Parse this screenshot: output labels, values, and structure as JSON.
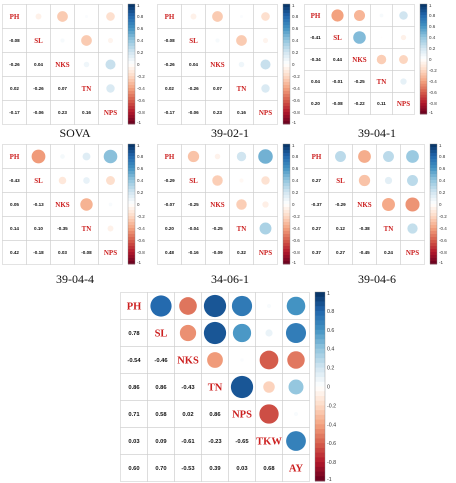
{
  "colors": {
    "neg": "#67001F",
    "mid": "#FFFFFF",
    "pos": "#053061",
    "grid": "#d0d0d0",
    "label": "#cc1f1f"
  },
  "chart_data": [
    {
      "type": "heatmap",
      "title": "SOVA",
      "variables": [
        "PH",
        "SL",
        "NKS",
        "TN",
        "NPS"
      ],
      "values": [
        [
          1,
          -0.08,
          -0.26,
          0.02,
          -0.17
        ],
        [
          -0.08,
          1,
          0.04,
          -0.26,
          -0.06
        ],
        [
          -0.26,
          0.04,
          1,
          0.07,
          0.23
        ],
        [
          0.02,
          -0.26,
          0.07,
          1,
          0.16
        ],
        [
          -0.17,
          -0.06,
          0.23,
          0.16,
          1
        ]
      ],
      "colorbar_ticks": [
        "1",
        "0.8",
        "0.6",
        "0.4",
        "0.2",
        "0",
        "-0.2",
        "-0.4",
        "-0.6",
        "-0.8",
        "-1"
      ],
      "clim": [
        -1,
        1
      ]
    },
    {
      "type": "heatmap",
      "title": "39-02-1",
      "variables": [
        "PH",
        "SL",
        "NKS",
        "TN",
        "NPS"
      ],
      "values": [
        [
          1,
          -0.08,
          -0.26,
          0.02,
          -0.17
        ],
        [
          -0.08,
          1,
          0.04,
          -0.26,
          -0.06
        ],
        [
          -0.26,
          0.04,
          1,
          0.07,
          0.23
        ],
        [
          0.02,
          -0.26,
          0.07,
          1,
          0.16
        ],
        [
          -0.17,
          -0.06,
          0.23,
          0.16,
          1
        ]
      ],
      "colorbar_ticks": [
        "1",
        "0.8",
        "0.6",
        "0.4",
        "0.2",
        "0",
        "-0.2",
        "-0.4",
        "-0.6",
        "-0.8",
        "-1"
      ],
      "clim": [
        -1,
        1
      ]
    },
    {
      "type": "heatmap",
      "title": "39-04-1",
      "variables": [
        "PH",
        "SL",
        "NKS",
        "TN",
        "NPS"
      ],
      "values": [
        [
          1,
          -0.41,
          -0.34,
          0.04,
          0.2
        ],
        [
          -0.41,
          1,
          0.44,
          -0.01,
          -0.08
        ],
        [
          -0.34,
          0.44,
          1,
          -0.25,
          -0.22
        ],
        [
          0.04,
          -0.01,
          -0.25,
          1,
          0.11
        ],
        [
          0.2,
          -0.08,
          -0.22,
          0.11,
          1
        ]
      ],
      "colorbar_ticks": [
        "1",
        "0.8",
        "0.6",
        "0.4",
        "0.2",
        "0",
        "-0.2",
        "-0.4",
        "-0.6",
        "-0.8",
        "-1"
      ],
      "clim": [
        -1,
        1
      ]
    },
    {
      "type": "heatmap",
      "title": "39-04-4",
      "variables": [
        "PH",
        "SL",
        "NKS",
        "TN",
        "NPS"
      ],
      "values": [
        [
          1,
          -0.43,
          0.05,
          0.14,
          0.42
        ],
        [
          -0.43,
          1,
          -0.13,
          0.1,
          -0.18
        ],
        [
          0.05,
          -0.13,
          1,
          -0.35,
          0.03
        ],
        [
          0.14,
          0.1,
          -0.35,
          1,
          -0.08
        ],
        [
          0.42,
          -0.18,
          0.03,
          -0.08,
          1
        ]
      ],
      "colorbar_ticks": [
        "1",
        "0.8",
        "0.6",
        "0.4",
        "0.2",
        "0",
        "-0.2",
        "-0.4",
        "-0.6",
        "-0.8",
        "-1"
      ],
      "clim": [
        -1,
        1
      ]
    },
    {
      "type": "heatmap",
      "title": "34-06-1",
      "variables": [
        "PH",
        "SL",
        "NKS",
        "TN",
        "NPS"
      ],
      "values": [
        [
          1,
          -0.29,
          -0.07,
          0.2,
          0.48
        ],
        [
          -0.29,
          1,
          -0.25,
          -0.04,
          -0.16
        ],
        [
          -0.07,
          -0.25,
          1,
          -0.25,
          -0.09
        ],
        [
          0.2,
          -0.04,
          -0.25,
          1,
          0.32
        ],
        [
          0.48,
          -0.16,
          -0.09,
          0.32,
          1
        ]
      ],
      "colorbar_ticks": [
        "1",
        "0.8",
        "0.6",
        "0.4",
        "0.2",
        "0",
        "-0.2",
        "-0.4",
        "-0.6",
        "-0.8",
        "-1"
      ],
      "clim": [
        -1,
        1
      ]
    },
    {
      "type": "heatmap",
      "title": "39-04-6",
      "variables": [
        "PH",
        "SL",
        "NKS",
        "TN",
        "NPS"
      ],
      "values": [
        [
          1,
          0.27,
          -0.37,
          0.27,
          0.37
        ],
        [
          0.27,
          1,
          -0.29,
          0.12,
          0.27
        ],
        [
          -0.37,
          -0.29,
          1,
          -0.38,
          -0.45
        ],
        [
          0.27,
          0.12,
          -0.38,
          1,
          0.24
        ],
        [
          0.37,
          0.27,
          -0.45,
          0.24,
          1
        ]
      ],
      "colorbar_ticks": [
        "1",
        "0.8",
        "0.6",
        "0.4",
        "0.2",
        "0",
        "-0.2",
        "-0.4",
        "-0.6",
        "-0.8",
        "-1"
      ],
      "clim": [
        -1,
        1
      ]
    },
    {
      "type": "heatmap",
      "title": "",
      "variables": [
        "PH",
        "SL",
        "NKS",
        "TN",
        "NPS",
        "TKW",
        "AY"
      ],
      "values": [
        [
          1,
          0.78,
          -0.54,
          0.86,
          0.71,
          0.03,
          0.6
        ],
        [
          0.78,
          1,
          -0.46,
          0.86,
          0.58,
          0.09,
          0.7
        ],
        [
          -0.54,
          -0.46,
          1,
          -0.43,
          0.02,
          -0.61,
          -0.53
        ],
        [
          0.86,
          0.86,
          -0.43,
          1,
          0.86,
          -0.23,
          0.39
        ],
        [
          0.71,
          0.58,
          0.02,
          0.86,
          1,
          -0.65,
          0.03
        ],
        [
          0.03,
          0.09,
          -0.61,
          -0.23,
          -0.65,
          1,
          0.68
        ],
        [
          0.6,
          0.7,
          -0.53,
          0.39,
          0.03,
          0.68,
          1
        ]
      ],
      "colorbar_ticks": [
        "1",
        "0.8",
        "0.6",
        "0.4",
        "0.2",
        "0",
        "-0.2",
        "-0.4",
        "-0.6",
        "-0.8",
        "-1"
      ],
      "clim": [
        -1,
        1
      ]
    }
  ]
}
